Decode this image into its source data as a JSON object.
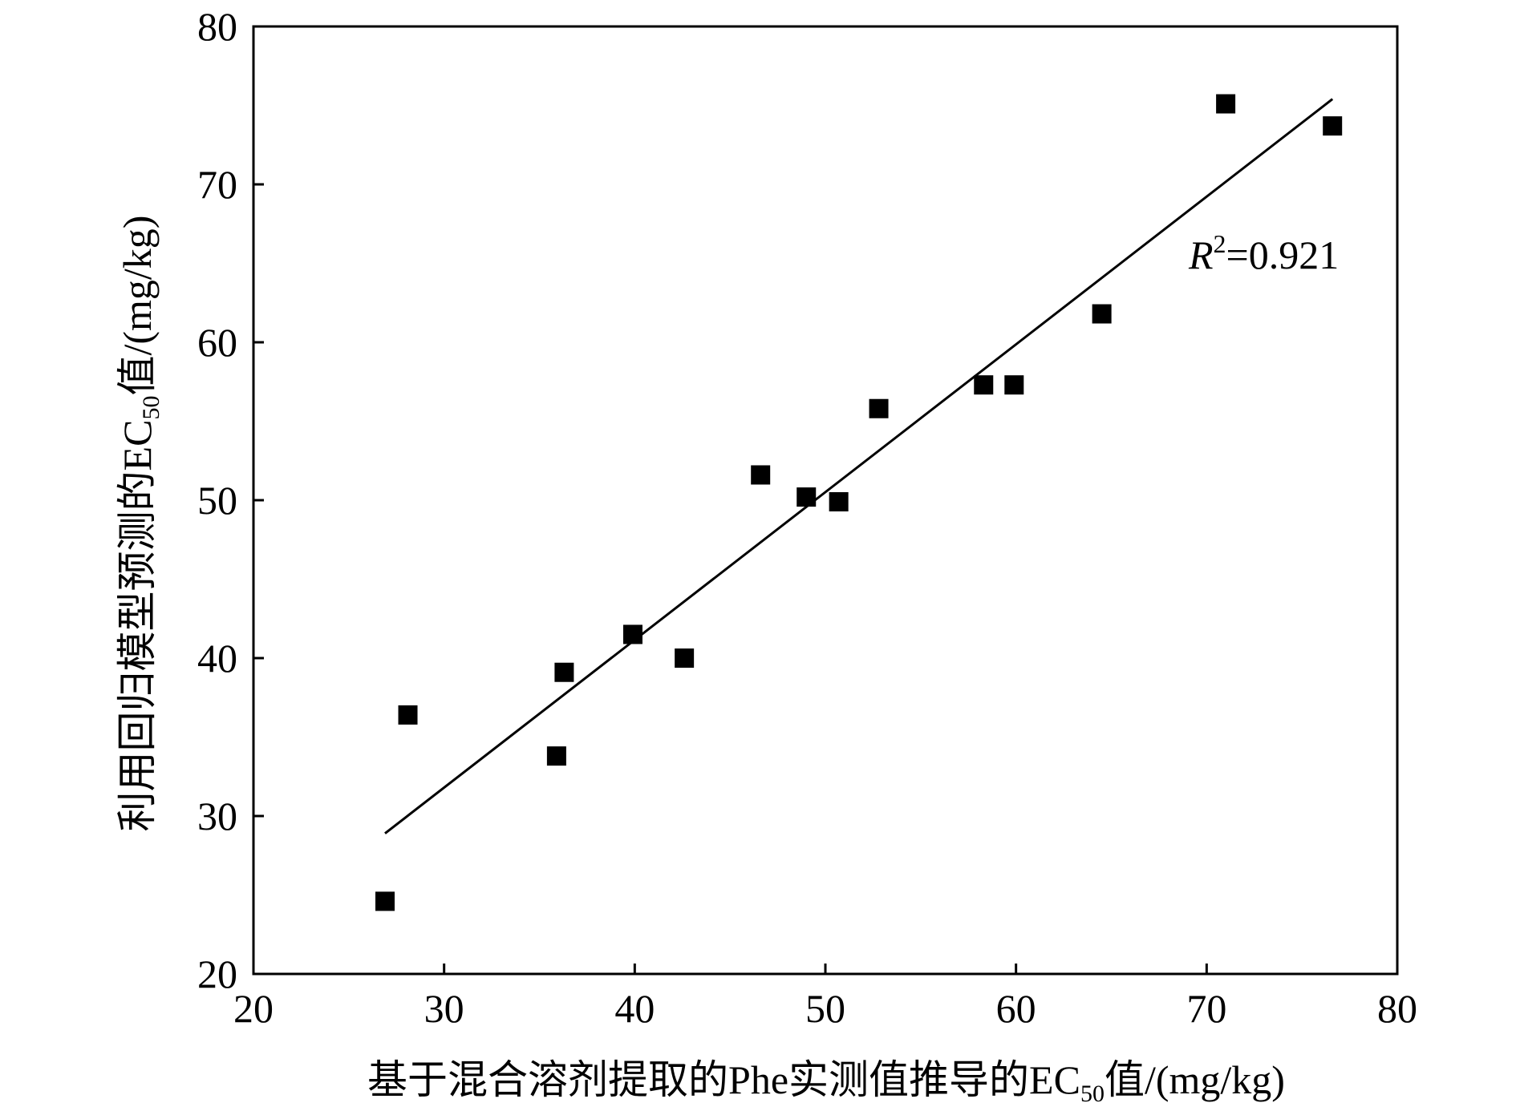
{
  "chart_data": {
    "type": "scatter",
    "title": "",
    "xlabel": "基于混合溶剂提取的Phe实测值推导的EC50值/(mg/kg)",
    "xlabel_parts": {
      "before": "基于混合溶剂提取的Phe实测值推导的EC",
      "sub": "50",
      "after": "值/(mg/kg)"
    },
    "ylabel": "利用回归模型预测的EC50值/(mg/kg)",
    "ylabel_parts": {
      "before": "利用回归模型预测的EC",
      "sub": "50",
      "after": "值/(mg/kg)"
    },
    "xlim": [
      20,
      80
    ],
    "ylim": [
      20,
      80
    ],
    "xticks": [
      20,
      30,
      40,
      50,
      60,
      70,
      80
    ],
    "yticks": [
      20,
      30,
      40,
      50,
      60,
      70,
      80
    ],
    "grid": false,
    "legend": "none",
    "marker_color": "#000000",
    "points": [
      {
        "x": 26.9,
        "y": 24.6
      },
      {
        "x": 28.1,
        "y": 36.4
      },
      {
        "x": 35.9,
        "y": 33.8
      },
      {
        "x": 36.3,
        "y": 39.1
      },
      {
        "x": 39.9,
        "y": 41.5
      },
      {
        "x": 42.6,
        "y": 40.0
      },
      {
        "x": 46.6,
        "y": 51.6
      },
      {
        "x": 49.0,
        "y": 50.2
      },
      {
        "x": 50.7,
        "y": 49.9
      },
      {
        "x": 52.8,
        "y": 55.8
      },
      {
        "x": 58.3,
        "y": 57.3
      },
      {
        "x": 59.9,
        "y": 57.3
      },
      {
        "x": 64.5,
        "y": 61.8
      },
      {
        "x": 71.0,
        "y": 75.1
      },
      {
        "x": 76.6,
        "y": 73.7
      }
    ],
    "fit_line": {
      "x": [
        26.9,
        76.6
      ],
      "y": [
        28.9,
        75.4
      ]
    },
    "annotation": {
      "var": "R",
      "sup": "2",
      "text": "=0.921"
    }
  }
}
